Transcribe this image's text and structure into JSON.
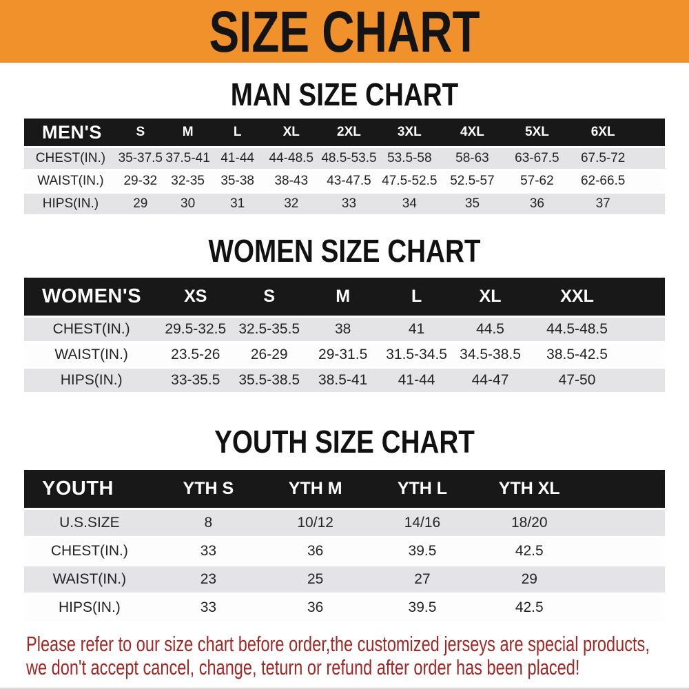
{
  "banner": {
    "title": "SIZE CHART"
  },
  "sections": [
    {
      "key": "men",
      "title": "MAN SIZE CHART",
      "group_label": "MEN'S",
      "columns": [
        "S",
        "M",
        "L",
        "XL",
        "2XL",
        "3XL",
        "4XL",
        "5XL",
        "6XL"
      ],
      "rows": [
        {
          "label": "CHEST(IN.)",
          "values": [
            "35-37.5",
            "37.5-41",
            "41-44",
            "44-48.5",
            "48.5-53.5",
            "53.5-58",
            "58-63",
            "63-67.5",
            "67.5-72"
          ]
        },
        {
          "label": "WAIST(IN.)",
          "values": [
            "29-32",
            "32-35",
            "35-38",
            "38-43",
            "43-47.5",
            "47.5-52.5",
            "52.5-57",
            "57-62",
            "62-66.5"
          ]
        },
        {
          "label": "HIPS(IN.)",
          "values": [
            "29",
            "30",
            "31",
            "32",
            "33",
            "34",
            "35",
            "36",
            "37"
          ]
        }
      ]
    },
    {
      "key": "women",
      "title": "WOMEN SIZE CHART",
      "group_label": "WOMEN'S",
      "columns": [
        "XS",
        "S",
        "M",
        "L",
        "XL",
        "XXL"
      ],
      "rows": [
        {
          "label": "CHEST(IN.)",
          "values": [
            "29.5-32.5",
            "32.5-35.5",
            "38",
            "41",
            "44.5",
            "44.5-48.5"
          ]
        },
        {
          "label": "WAIST(IN.)",
          "values": [
            "23.5-26",
            "26-29",
            "29-31.5",
            "31.5-34.5",
            "34.5-38.5",
            "38.5-42.5"
          ]
        },
        {
          "label": "HIPS(IN.)",
          "values": [
            "33-35.5",
            "35.5-38.5",
            "38.5-41",
            "41-44",
            "44-47",
            "47-50"
          ]
        }
      ]
    },
    {
      "key": "youth",
      "title": "YOUTH SIZE CHART",
      "group_label": "YOUTH",
      "columns": [
        "YTH S",
        "YTH M",
        "YTH L",
        "YTH XL"
      ],
      "rows": [
        {
          "label": "U.S.SIZE",
          "values": [
            "8",
            "10/12",
            "14/16",
            "18/20"
          ]
        },
        {
          "label": "CHEST(IN.)",
          "values": [
            "33",
            "36",
            "39.5",
            "42.5"
          ]
        },
        {
          "label": "WAIST(IN.)",
          "values": [
            "23",
            "25",
            "27",
            "29"
          ]
        },
        {
          "label": "HIPS(IN.)",
          "values": [
            "33",
            "36",
            "39.5",
            "42.5"
          ]
        }
      ]
    }
  ],
  "disclaimer": {
    "line1": "Please refer to our size chart before order,the customized jerseys are special products,",
    "line2": "we don't accept cancel, change, teturn or refund after order has been placed!"
  },
  "colors": {
    "banner_orange": "#F0912B",
    "header_black": "#181818",
    "row_gray": "#E4E4E6",
    "disclaimer_red": "#A32624"
  }
}
